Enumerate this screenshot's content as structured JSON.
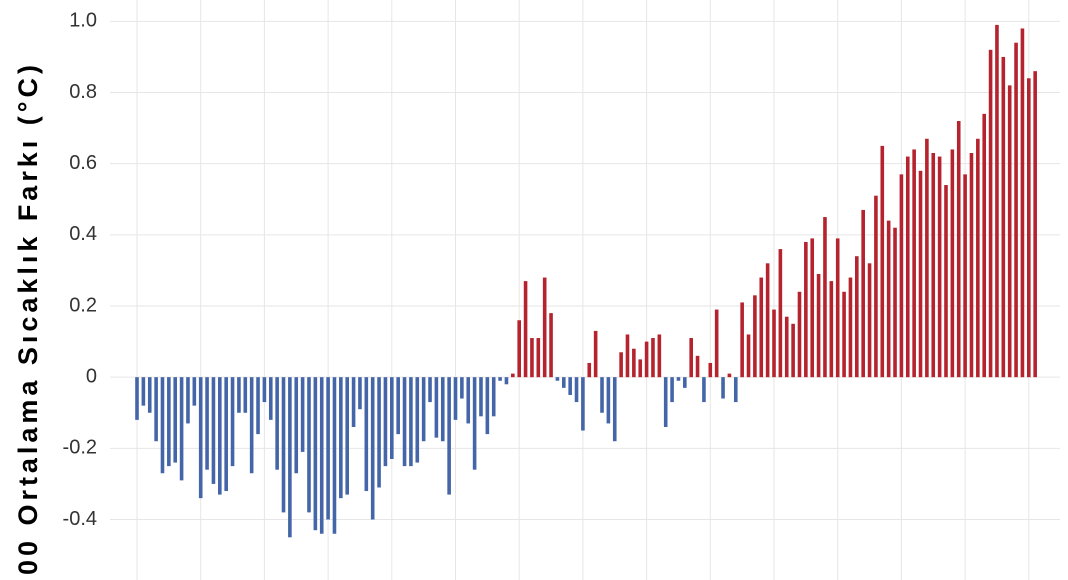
{
  "chart_data": {
    "type": "bar",
    "y_label": "00 Ortalama Sıcaklık Farkı (°C)",
    "values": [
      -0.12,
      -0.08,
      -0.1,
      -0.18,
      -0.27,
      -0.25,
      -0.24,
      -0.29,
      -0.13,
      -0.08,
      -0.34,
      -0.26,
      -0.3,
      -0.33,
      -0.32,
      -0.25,
      -0.1,
      -0.1,
      -0.27,
      -0.16,
      -0.07,
      -0.12,
      -0.26,
      -0.38,
      -0.45,
      -0.27,
      -0.21,
      -0.38,
      -0.43,
      -0.44,
      -0.4,
      -0.44,
      -0.34,
      -0.33,
      -0.14,
      -0.09,
      -0.32,
      -0.4,
      -0.31,
      -0.25,
      -0.23,
      -0.16,
      -0.25,
      -0.25,
      -0.24,
      -0.18,
      -0.07,
      -0.17,
      -0.18,
      -0.33,
      -0.12,
      -0.06,
      -0.13,
      -0.26,
      -0.11,
      -0.16,
      -0.11,
      -0.01,
      -0.02,
      0.01,
      0.16,
      0.27,
      0.11,
      0.11,
      0.28,
      0.18,
      -0.01,
      -0.03,
      -0.05,
      -0.07,
      -0.15,
      0.04,
      0.13,
      -0.1,
      -0.13,
      -0.18,
      0.07,
      0.12,
      0.08,
      0.05,
      0.1,
      0.11,
      0.12,
      -0.14,
      -0.07,
      -0.01,
      -0.03,
      0.11,
      0.06,
      -0.07,
      0.04,
      0.19,
      -0.06,
      0.01,
      -0.07,
      0.21,
      0.12,
      0.23,
      0.28,
      0.32,
      0.19,
      0.36,
      0.17,
      0.15,
      0.24,
      0.38,
      0.39,
      0.29,
      0.45,
      0.27,
      0.39,
      0.24,
      0.28,
      0.34,
      0.47,
      0.32,
      0.51,
      0.65,
      0.44,
      0.42,
      0.57,
      0.62,
      0.64,
      0.58,
      0.67,
      0.63,
      0.62,
      0.54,
      0.64,
      0.72,
      0.57,
      0.63,
      0.67,
      0.74,
      0.92,
      0.99,
      0.9,
      0.82,
      0.94,
      0.98,
      0.84,
      0.86
    ],
    "positive_color": "#b5232e",
    "negative_color": "#4466a8",
    "ylim": [
      -0.57,
      1.06
    ],
    "yticks": [
      {
        "value": 1.0,
        "label": "1.0"
      },
      0.8,
      0.6,
      0.4,
      0.2,
      0,
      -0.2,
      -0.4
    ],
    "grid": true
  }
}
